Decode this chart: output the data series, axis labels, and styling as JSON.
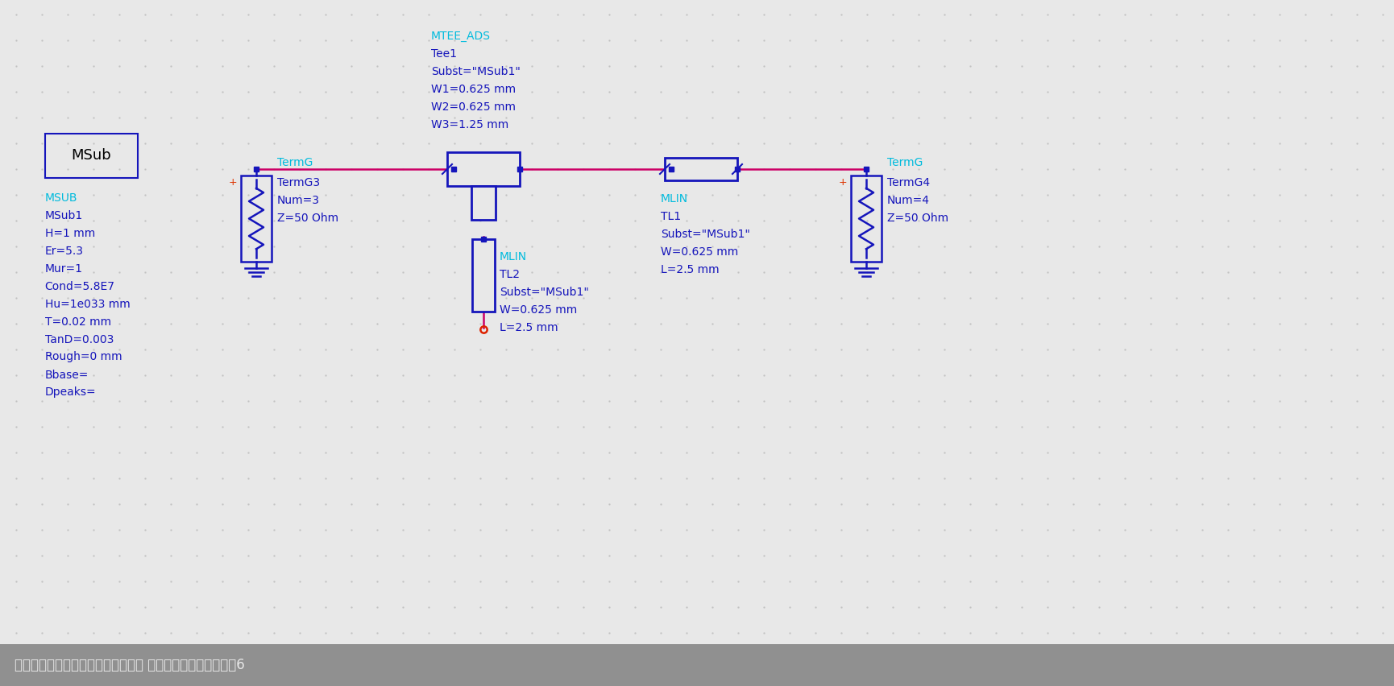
{
  "bg_color": "#e8e8e8",
  "dot_color": "#c0c0c0",
  "main_line_color": "#cc0066",
  "component_color": "#1515bb",
  "label_color_cyan": "#00bbdd",
  "title_bar_color": "#909090",
  "title_text_color": "#e8e8e8",
  "title_text": "常见匹配网络的微带线实现（一）： 微带单支节匹配网络设计6",
  "plus_color": "#dd3300",
  "open_dot_color": "#dd2200",
  "msub_props": [
    "MSub1",
    "H=1 mm",
    "Er=5.3",
    "Mur=1",
    "Cond=5.8E7",
    "Hu=1e033 mm",
    "T=0.02 mm",
    "TanD=0.003",
    "Rough=0 mm",
    "Bbase=",
    "Dpeaks="
  ],
  "tee_label_lines": [
    "MTEE_ADS",
    "Tee1",
    "Subst=\"MSub1\"",
    "W1=0.625 mm",
    "W2=0.625 mm",
    "W3=1.25 mm"
  ],
  "tl1_props": [
    "TL1",
    "Subst=\"MSub1\"",
    "W=0.625 mm",
    "L=2.5 mm"
  ],
  "tl2_props": [
    "TL2",
    "Subst=\"MSub1\"",
    "W=0.625 mm",
    "L=2.5 mm"
  ],
  "termg3_props": [
    "TermG3",
    "Num=3",
    "Z=50 Ohm"
  ],
  "termg4_props": [
    "TermG4",
    "Num=4",
    "Z=50 Ohm"
  ]
}
